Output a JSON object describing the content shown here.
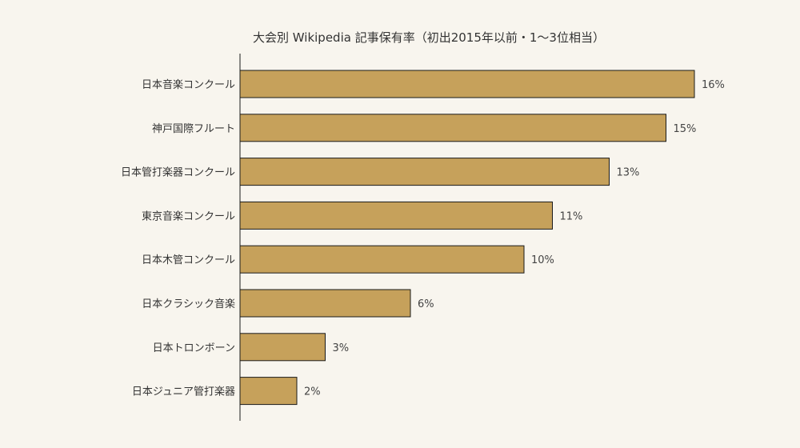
{
  "chart_data": {
    "type": "bar",
    "orientation": "horizontal",
    "title": "大会別 Wikipedia 記事保有率（初出2015年以前・1〜3位相当）",
    "categories": [
      "日本音楽コンクール",
      "神戸国際フルート",
      "日本管打楽器コンクール",
      "東京音楽コンクール",
      "日本木管コンクール",
      "日本クラシック音楽",
      "日本トロンボーン",
      "日本ジュニア管打楽器"
    ],
    "values": [
      16,
      15,
      13,
      11,
      10,
      6,
      3,
      2
    ],
    "value_labels": [
      "16%",
      "15%",
      "13%",
      "11%",
      "10%",
      "6%",
      "3%",
      "2%"
    ],
    "xlim": [
      0,
      20
    ],
    "xlabel": "",
    "ylabel": "",
    "grid": false,
    "legend": "none",
    "colors": {
      "bar_fill": "#c6a15b",
      "bar_stroke": "#1a1a1a",
      "axis": "#1a1a1a",
      "background": "#f8f5ee"
    }
  }
}
